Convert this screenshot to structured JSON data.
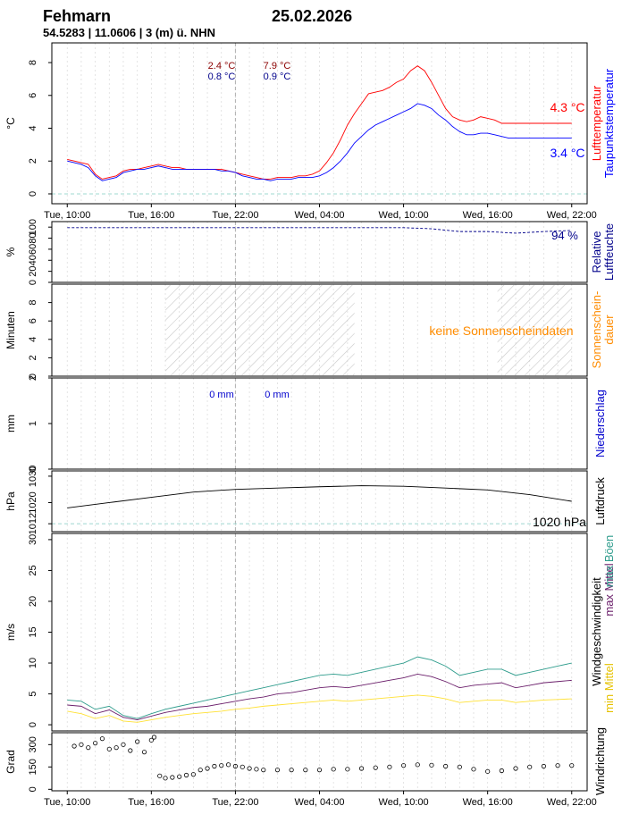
{
  "header": {
    "station": "Fehmarn",
    "date": "25.02.2026",
    "coords": "54.5283 | 11.0606 | 3 (m) ü. NHN"
  },
  "colors": {
    "temp": "#ff0000",
    "dew": "#0000ff",
    "humidity": "#00008b",
    "sun_label": "#ff8c00",
    "precip": "#0000cd",
    "pressure": "#000000",
    "wind_max": "#2e9c8c",
    "wind_mean": "#6b1f6b",
    "wind_min": "#ffe135",
    "grid": "#dddddd",
    "zero": "#9fd8d0"
  },
  "chart_data": [
    {
      "id": "temperature",
      "type": "line",
      "ylabel": "°C",
      "rlabels": [
        "Lufttemperatur",
        "Taupunktstemperatur"
      ],
      "ylim": [
        -0.6,
        9.2
      ],
      "yticks": [
        0,
        2,
        4,
        6,
        8
      ],
      "xticks": [
        "Tue, 10:00",
        "Tue, 16:00",
        "Tue, 22:00",
        "Wed, 04:00",
        "Wed, 10:00",
        "Wed, 16:00",
        "Wed, 22:00"
      ],
      "annotations": [
        {
          "text": "2.4 °C",
          "series": "temp"
        },
        {
          "text": "0.8 °C",
          "series": "dew"
        },
        {
          "text": "7.9 °C",
          "series": "temp"
        },
        {
          "text": "0.9 °C",
          "series": "dew"
        }
      ],
      "end_labels": [
        {
          "text": "4.3 °C",
          "series": "temp"
        },
        {
          "text": "3.4 °C",
          "series": "dew"
        }
      ],
      "x": [
        0,
        0.5,
        1,
        1.5,
        2,
        2.5,
        3,
        3.5,
        4,
        4.5,
        5,
        5.5,
        6,
        6.5,
        7,
        7.5,
        8,
        8.5,
        9,
        9.5,
        10,
        10.5,
        11,
        11.5,
        12,
        12.5,
        13,
        13.5,
        14,
        14.5,
        15,
        15.5,
        16,
        16.5,
        17,
        17.5,
        18,
        18.5,
        19,
        19.5,
        20,
        20.5,
        21,
        21.5,
        22,
        22.5,
        23,
        23.5,
        24,
        24.5,
        25,
        25.5,
        26,
        26.5,
        27,
        27.5,
        28,
        28.5,
        29,
        29.5,
        30,
        30.5,
        31,
        31.5,
        32,
        32.5,
        33,
        33.5,
        34,
        34.5,
        35,
        35.5,
        36
      ],
      "series": [
        {
          "name": "Lufttemperatur",
          "values": [
            2.1,
            2.0,
            1.9,
            1.8,
            1.2,
            0.9,
            1.0,
            1.1,
            1.4,
            1.5,
            1.5,
            1.6,
            1.7,
            1.8,
            1.7,
            1.6,
            1.6,
            1.5,
            1.5,
            1.5,
            1.5,
            1.5,
            1.5,
            1.4,
            1.3,
            1.2,
            1.1,
            1.0,
            0.9,
            0.9,
            1.0,
            1.0,
            1.0,
            1.1,
            1.1,
            1.2,
            1.4,
            1.9,
            2.5,
            3.3,
            4.2,
            4.9,
            5.5,
            6.1,
            6.2,
            6.3,
            6.5,
            6.8,
            7.0,
            7.5,
            7.8,
            7.5,
            6.8,
            6.0,
            5.2,
            4.7,
            4.5,
            4.4,
            4.5,
            4.7,
            4.6,
            4.5,
            4.3,
            4.3,
            4.3,
            4.3,
            4.3,
            4.3,
            4.3,
            4.3,
            4.3,
            4.3,
            4.3
          ]
        },
        {
          "name": "Taupunktstemperatur",
          "values": [
            2.0,
            1.9,
            1.8,
            1.6,
            1.1,
            0.8,
            0.9,
            1.0,
            1.3,
            1.4,
            1.5,
            1.5,
            1.6,
            1.7,
            1.6,
            1.5,
            1.5,
            1.5,
            1.5,
            1.5,
            1.5,
            1.5,
            1.4,
            1.4,
            1.3,
            1.1,
            1.0,
            0.9,
            0.9,
            0.8,
            0.9,
            0.9,
            0.9,
            1.0,
            1.0,
            1.0,
            1.1,
            1.3,
            1.6,
            2.0,
            2.5,
            3.1,
            3.5,
            3.9,
            4.2,
            4.4,
            4.6,
            4.8,
            5.0,
            5.2,
            5.5,
            5.4,
            5.2,
            4.8,
            4.5,
            4.1,
            3.8,
            3.6,
            3.6,
            3.7,
            3.7,
            3.6,
            3.5,
            3.4,
            3.4,
            3.4,
            3.4,
            3.4,
            3.4,
            3.4,
            3.4,
            3.4,
            3.4
          ]
        }
      ]
    },
    {
      "id": "humidity",
      "type": "line",
      "ylabel": "%",
      "rlabels": [
        "Relative",
        "Luftfeuchte"
      ],
      "ylim": [
        0,
        110
      ],
      "yticks": [
        0,
        20,
        40,
        60,
        80,
        100
      ],
      "end_labels": [
        {
          "text": "94 %",
          "series": "humidity"
        }
      ],
      "x": [
        0,
        6,
        12,
        18,
        24,
        26,
        28,
        30,
        32,
        34,
        36
      ],
      "series": [
        {
          "name": "Relative Luftfeuchte",
          "values": [
            99,
            99,
            99,
            99,
            99,
            97,
            92,
            92,
            89,
            92,
            94
          ]
        }
      ]
    },
    {
      "id": "sunshine",
      "type": "area",
      "ylabel": "Minuten",
      "rlabels": [
        "Sonnenschein-",
        "dauer"
      ],
      "ylim": [
        0,
        10
      ],
      "yticks": [
        0,
        2,
        4,
        6,
        8
      ],
      "night": [
        [
          7,
          20.5
        ],
        [
          30.7,
          36
        ]
      ],
      "note": "keine Sonnenscheindaten"
    },
    {
      "id": "precipitation",
      "type": "bar",
      "ylabel": "mm",
      "rlabels": [
        "Niederschlag"
      ],
      "ylim": [
        0,
        2.0
      ],
      "yticks": [
        0,
        1.0,
        2.0
      ],
      "annotations": [
        {
          "text": "0 mm"
        },
        {
          "text": "0 mm"
        }
      ]
    },
    {
      "id": "pressure",
      "type": "line",
      "ylabel": "hPa",
      "rlabels": [
        "Luftdruck"
      ],
      "ylim": [
        1009,
        1032
      ],
      "yticks": [
        1012,
        1020,
        1030
      ],
      "yticklabels": [
        "1012",
        "1020",
        "1030"
      ],
      "end_labels": [
        {
          "text": "1020 hPa",
          "series": "pressure"
        }
      ],
      "x": [
        0,
        3,
        6,
        9,
        12,
        15,
        18,
        21,
        24,
        27,
        30,
        33,
        36
      ],
      "series": [
        {
          "name": "Luftdruck",
          "values": [
            1018,
            1020,
            1022,
            1024,
            1025,
            1025.5,
            1026,
            1026.4,
            1026.2,
            1025.5,
            1024.8,
            1023,
            1020.5
          ]
        }
      ]
    },
    {
      "id": "wind",
      "type": "line",
      "ylabel": "m/s",
      "rlabels": [
        "Windgeschwindigkeit",
        "max Mittel",
        "max Böen",
        "min Mittel"
      ],
      "ylim": [
        -1,
        31
      ],
      "yticks": [
        0,
        5,
        10,
        15,
        20,
        25,
        30
      ],
      "x": [
        0,
        1,
        2,
        3,
        4,
        5,
        6,
        7,
        8,
        9,
        10,
        11,
        12,
        13,
        14,
        15,
        16,
        17,
        18,
        19,
        20,
        21,
        22,
        23,
        24,
        25,
        26,
        27,
        28,
        29,
        30,
        31,
        32,
        33,
        34,
        35,
        36
      ],
      "series": [
        {
          "name": "max Böen",
          "values": [
            4.0,
            3.8,
            2.5,
            3.0,
            1.5,
            1.0,
            1.8,
            2.5,
            3.0,
            3.5,
            4.0,
            4.5,
            5.0,
            5.5,
            6.0,
            6.5,
            7.0,
            7.5,
            8.0,
            8.2,
            8.0,
            8.5,
            9.0,
            9.5,
            10.0,
            11.0,
            10.5,
            9.5,
            8.0,
            8.5,
            9.0,
            9.0,
            8.0,
            8.5,
            9.0,
            9.5,
            10.0
          ]
        },
        {
          "name": "max Mittel",
          "values": [
            3.2,
            3.0,
            1.8,
            2.4,
            1.2,
            0.8,
            1.4,
            2.0,
            2.4,
            2.8,
            3.0,
            3.4,
            3.8,
            4.2,
            4.5,
            5.0,
            5.2,
            5.6,
            6.0,
            6.2,
            6.0,
            6.4,
            6.8,
            7.2,
            7.6,
            8.2,
            7.8,
            7.0,
            6.0,
            6.4,
            6.6,
            6.8,
            6.0,
            6.4,
            6.8,
            7.0,
            7.2
          ]
        },
        {
          "name": "min Mittel",
          "values": [
            2.2,
            1.8,
            1.0,
            1.5,
            0.6,
            0.4,
            0.8,
            1.2,
            1.5,
            1.8,
            2.0,
            2.2,
            2.5,
            2.7,
            3.0,
            3.2,
            3.4,
            3.6,
            3.8,
            4.0,
            3.8,
            4.0,
            4.2,
            4.4,
            4.6,
            4.8,
            4.6,
            4.2,
            3.6,
            3.8,
            4.0,
            4.0,
            3.6,
            3.8,
            4.0,
            4.1,
            4.2
          ]
        }
      ]
    },
    {
      "id": "direction",
      "type": "scatter",
      "ylabel": "Grad",
      "rlabels": [
        "Windrichtung"
      ],
      "ylim": [
        -10,
        380
      ],
      "yticks": [
        0,
        150,
        300
      ],
      "xticks": [
        "Tue, 10:00",
        "Tue, 16:00",
        "Tue, 22:00",
        "Wed, 04:00",
        "Wed, 10:00",
        "Wed, 16:00",
        "Wed, 22:00"
      ],
      "x": [
        0.5,
        1,
        1.5,
        2,
        2.5,
        3,
        3.5,
        4,
        4.5,
        5,
        5.5,
        6,
        6.2,
        6.6,
        7,
        7.5,
        8,
        8.5,
        9,
        9.5,
        10,
        10.5,
        11,
        11.5,
        12,
        12.5,
        13,
        13.5,
        14,
        15,
        16,
        17,
        18,
        19,
        20,
        21,
        22,
        23,
        24,
        25,
        26,
        27,
        28,
        29,
        30,
        31,
        32,
        33,
        34,
        35,
        36
      ],
      "values": [
        290,
        300,
        280,
        310,
        340,
        270,
        280,
        300,
        260,
        320,
        250,
        330,
        350,
        90,
        75,
        80,
        85,
        95,
        100,
        130,
        140,
        155,
        160,
        165,
        155,
        150,
        140,
        135,
        130,
        130,
        130,
        130,
        130,
        135,
        135,
        140,
        145,
        150,
        160,
        165,
        162,
        155,
        150,
        135,
        120,
        125,
        140,
        150,
        155,
        160,
        160
      ]
    }
  ]
}
